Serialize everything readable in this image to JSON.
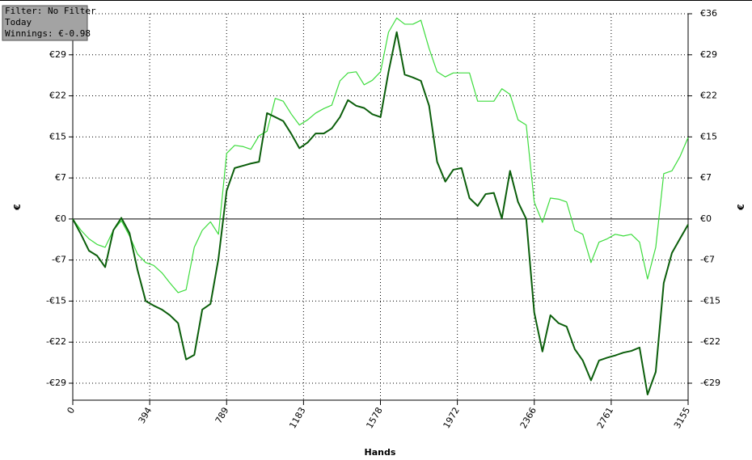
{
  "chart_data": {
    "type": "line",
    "annotations": [
      "Filter: No Filter",
      "Today",
      "Winnings: €-0.98"
    ],
    "xlabel": "Hands",
    "ylabel": "€",
    "x": [
      0,
      42,
      83,
      125,
      166,
      208,
      249,
      291,
      332,
      374,
      415,
      457,
      498,
      540,
      581,
      623,
      664,
      706,
      747,
      789,
      830,
      872,
      913,
      955,
      996,
      1038,
      1079,
      1121,
      1162,
      1204,
      1245,
      1287,
      1328,
      1370,
      1411,
      1453,
      1494,
      1536,
      1578,
      1619,
      1661,
      1702,
      1744,
      1785,
      1827,
      1868,
      1910,
      1951,
      1993,
      2034,
      2076,
      2117,
      2159,
      2200,
      2242,
      2283,
      2325,
      2366,
      2408,
      2449,
      2491,
      2532,
      2574,
      2615,
      2657,
      2698,
      2740,
      2781,
      2823,
      2864,
      2906,
      2947,
      2989,
      3030,
      3072,
      3113,
      3155
    ],
    "series": [
      {
        "color": "#0b5e0b",
        "values": [
          0,
          -2.7,
          -5.6,
          -6.5,
          -8.5,
          -2,
          0.2,
          -2.5,
          -9,
          -14.5,
          -15.3,
          -16,
          -17,
          -18.4,
          -24.8,
          -24,
          -16,
          -15,
          -7,
          5,
          9,
          9.4,
          9.8,
          10.1,
          18.7,
          18,
          17.3,
          15,
          12.5,
          13.5,
          15.1,
          15.1,
          16,
          18,
          21,
          20,
          19.6,
          18.5,
          18,
          26,
          33,
          25.5,
          25,
          24.4,
          20,
          10.1,
          6.6,
          8.7,
          9,
          3.7,
          2.3,
          4.4,
          4.6,
          0.1,
          8.5,
          3,
          0,
          -16.5,
          -23.4,
          -17,
          -18.4,
          -19,
          -23,
          -25,
          -28.5,
          -25,
          -24.5,
          -24.1,
          -23.6,
          -23.3,
          -22.7,
          -31,
          -27,
          -11.3,
          -6,
          -3.5,
          -0.98
        ]
      },
      {
        "color": "#3ddc3d",
        "values": [
          0,
          -2,
          -3.5,
          -4.5,
          -5,
          -2,
          -0.3,
          -3,
          -6.2,
          -7.7,
          -8.2,
          -9.5,
          -11.3,
          -13,
          -12.5,
          -5,
          -2,
          -0.5,
          -2.7,
          11.6,
          13,
          12.8,
          12.3,
          14.7,
          15.5,
          21.3,
          20.8,
          18.5,
          16.6,
          17.5,
          18.7,
          19.5,
          20.1,
          24.4,
          25.8,
          26,
          23.7,
          24.5,
          26,
          33,
          35.5,
          34.4,
          34.4,
          35.1,
          30.1,
          26,
          25.1,
          25.8,
          25.8,
          25.8,
          20.8,
          20.8,
          20.8,
          23,
          22,
          17.5,
          16.6,
          3,
          -0.6,
          3.7,
          3.5,
          3,
          -2,
          -2.7,
          -7.7,
          -4.1,
          -3.5,
          -2.7,
          -3,
          -2.7,
          -4.1,
          -10.6,
          -5,
          8,
          8.5,
          11,
          14.4
        ]
      }
    ],
    "xlim": [
      0,
      3155
    ],
    "xticks": [
      0,
      {
        "value": 394.375,
        "label": "394"
      },
      {
        "value": 788.75,
        "label": "789"
      },
      {
        "value": 1183.125,
        "label": "1183"
      },
      {
        "value": 1577.5,
        "label": "1578"
      },
      {
        "value": 1971.875,
        "label": "1972"
      },
      {
        "value": 2366.25,
        "label": "2366"
      },
      {
        "value": 2760.625,
        "label": "2761"
      },
      3155
    ],
    "ylim": [
      -32,
      36.25
    ],
    "yticks": [
      {
        "value": 36.25,
        "label": "€36"
      },
      {
        "value": 29,
        "label": "€29"
      },
      {
        "value": 21.75,
        "label": "€22"
      },
      {
        "value": 14.5,
        "label": "€15"
      },
      {
        "value": 7.25,
        "label": "€7"
      },
      {
        "value": 0,
        "label": "€0"
      },
      {
        "value": -7.25,
        "label": "-€7"
      },
      {
        "value": -14.5,
        "label": "-€15"
      },
      {
        "value": -21.75,
        "label": "-€22"
      },
      {
        "value": -29,
        "label": "-€29"
      }
    ],
    "grid": true
  }
}
